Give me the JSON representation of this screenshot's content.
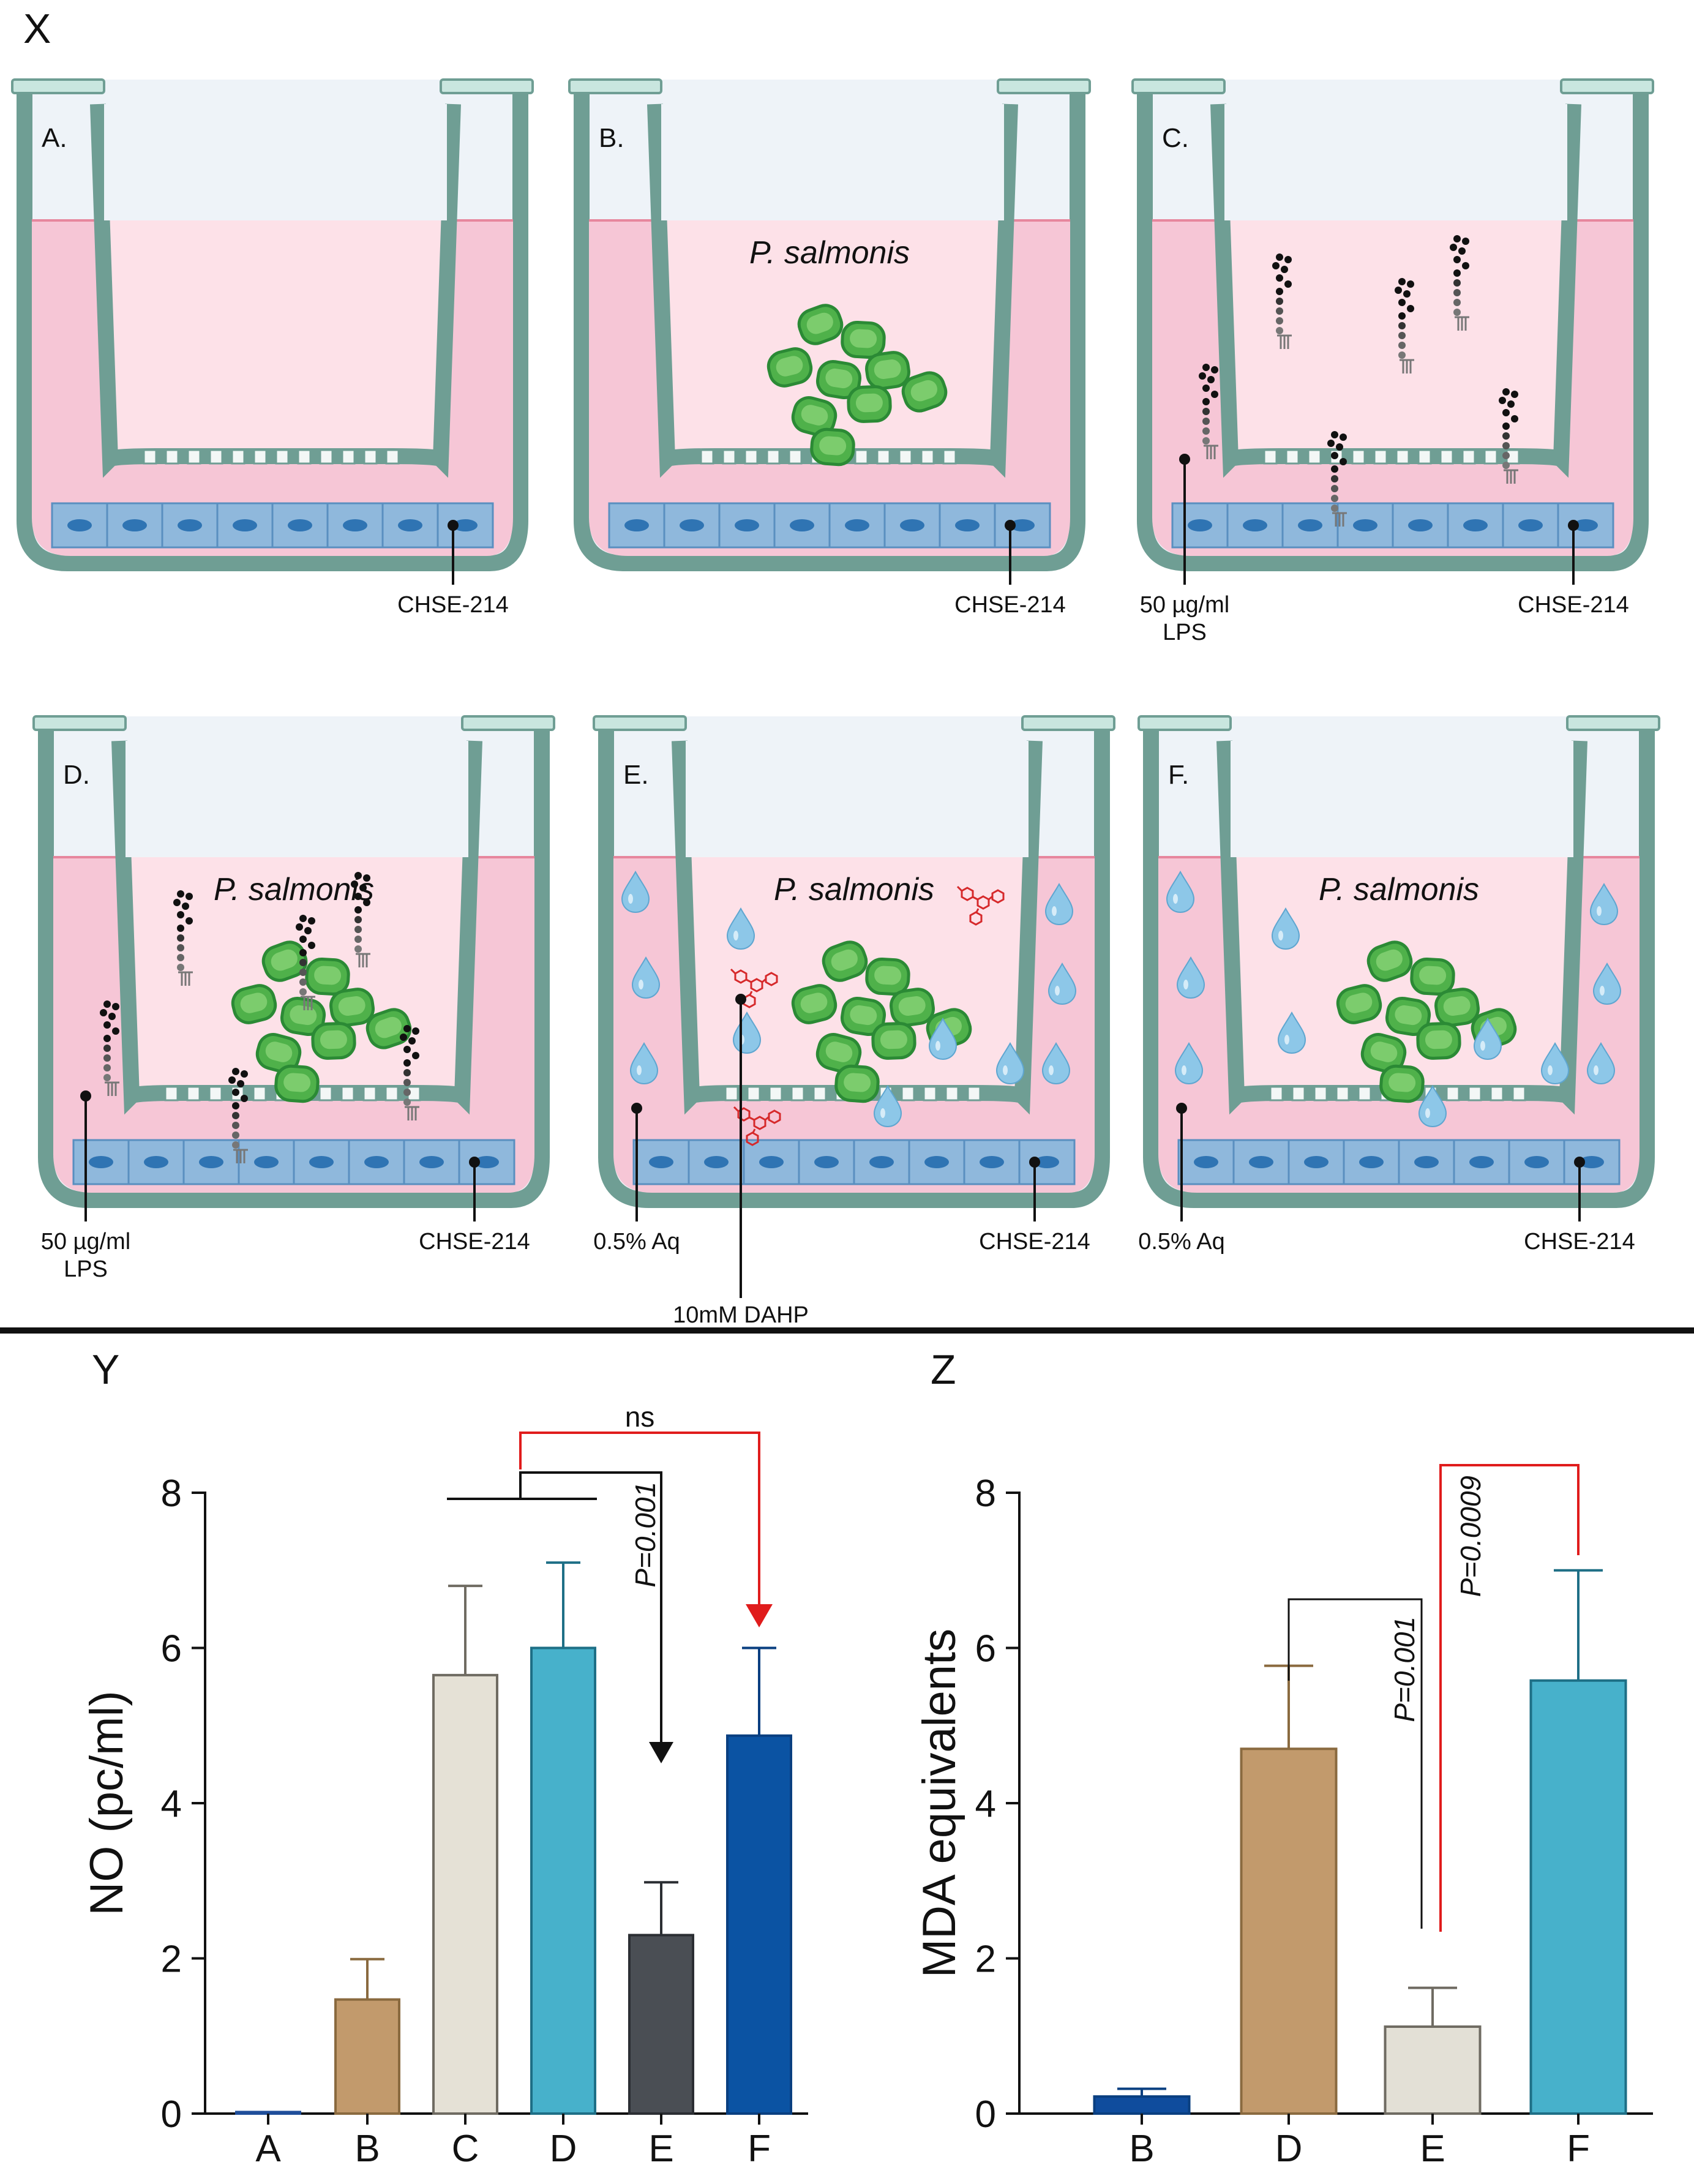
{
  "panel_labels": {
    "x": "X",
    "y": "Y",
    "z": "Z"
  },
  "wells": [
    {
      "id": "A",
      "letter": "A.",
      "pathogen": "",
      "cells": "CHSE-214",
      "left_label_1": "",
      "left_label_2": "",
      "lps": false,
      "aq": false,
      "dahp": false
    },
    {
      "id": "B",
      "letter": "B.",
      "pathogen": "P. salmonis",
      "cells": "CHSE-214",
      "left_label_1": "",
      "left_label_2": "",
      "lps": false,
      "aq": false,
      "dahp": false
    },
    {
      "id": "C",
      "letter": "C.",
      "pathogen": "",
      "cells": "CHSE-214",
      "left_label_1": "50 µg/ml",
      "left_label_2": "LPS",
      "lps": true,
      "aq": false,
      "dahp": false
    },
    {
      "id": "D",
      "letter": "D.",
      "pathogen": "P. salmonis",
      "cells": "CHSE-214",
      "left_label_1": "50 µg/ml",
      "left_label_2": "LPS",
      "lps": true,
      "aq": false,
      "dahp": false
    },
    {
      "id": "E",
      "letter": "E.",
      "pathogen": "P. salmonis",
      "cells": "CHSE-214",
      "left_label_1": "0.5% Aq",
      "left_label_2": "",
      "lps": false,
      "aq": true,
      "dahp": true
    },
    {
      "id": "F",
      "letter": "F.",
      "pathogen": "P. salmonis",
      "cells": "CHSE-214",
      "left_label_1": "0.5% Aq",
      "left_label_2": "",
      "lps": false,
      "aq": true,
      "dahp": false
    }
  ],
  "dahp_label": "10mM DAHP",
  "colors": {
    "well_stroke": "#6f9e94",
    "well_fill": "#c9e6df",
    "medium": "#f6c6d6",
    "insert_medium": "#fde1e8",
    "air": "#eef3f8",
    "cells": "#8fb8dc",
    "nucleus": "#2f74b3",
    "bacteria": "#4fb14a",
    "bacteria_dark": "#2b8a35",
    "drop": "#8dc7e8",
    "dahp": "#d6292b"
  },
  "chart_data": [
    {
      "type": "bar",
      "title": "",
      "xlabel": "",
      "ylabel": "NO (pc/ml)",
      "ylim": [
        0,
        8
      ],
      "yticks": [
        "0",
        "2",
        "4",
        "6",
        "8"
      ],
      "categories": [
        "A",
        "B",
        "C",
        "D",
        "E",
        "F"
      ],
      "values": [
        0.02,
        1.47,
        5.65,
        6.0,
        2.3,
        4.87
      ],
      "errors": [
        0.0,
        0.52,
        1.15,
        1.1,
        0.68,
        1.13
      ],
      "colors": [
        "#1f4e9a",
        "#c29a6c",
        "#e5e1d6",
        "#47b1cb",
        "#4a4e54",
        "#0b53a3"
      ],
      "annotations": {
        "p_black": "P=0.001",
        "ns_red": "ns"
      }
    },
    {
      "type": "bar",
      "title": "",
      "xlabel": "",
      "ylabel": "MDA equivalents",
      "ylim": [
        0,
        8
      ],
      "yticks": [
        "0",
        "2",
        "4",
        "6",
        "8"
      ],
      "categories": [
        "B",
        "D",
        "E",
        "F"
      ],
      "values": [
        0.22,
        4.7,
        1.12,
        5.58
      ],
      "errors": [
        0.1,
        1.07,
        0.5,
        1.42
      ],
      "colors": [
        "#0f4c9d",
        "#c29a6c",
        "#e3e0d6",
        "#47b1cb"
      ],
      "annotations": {
        "p_black": "P=0.001",
        "p_red": "P=0.0009"
      }
    }
  ]
}
